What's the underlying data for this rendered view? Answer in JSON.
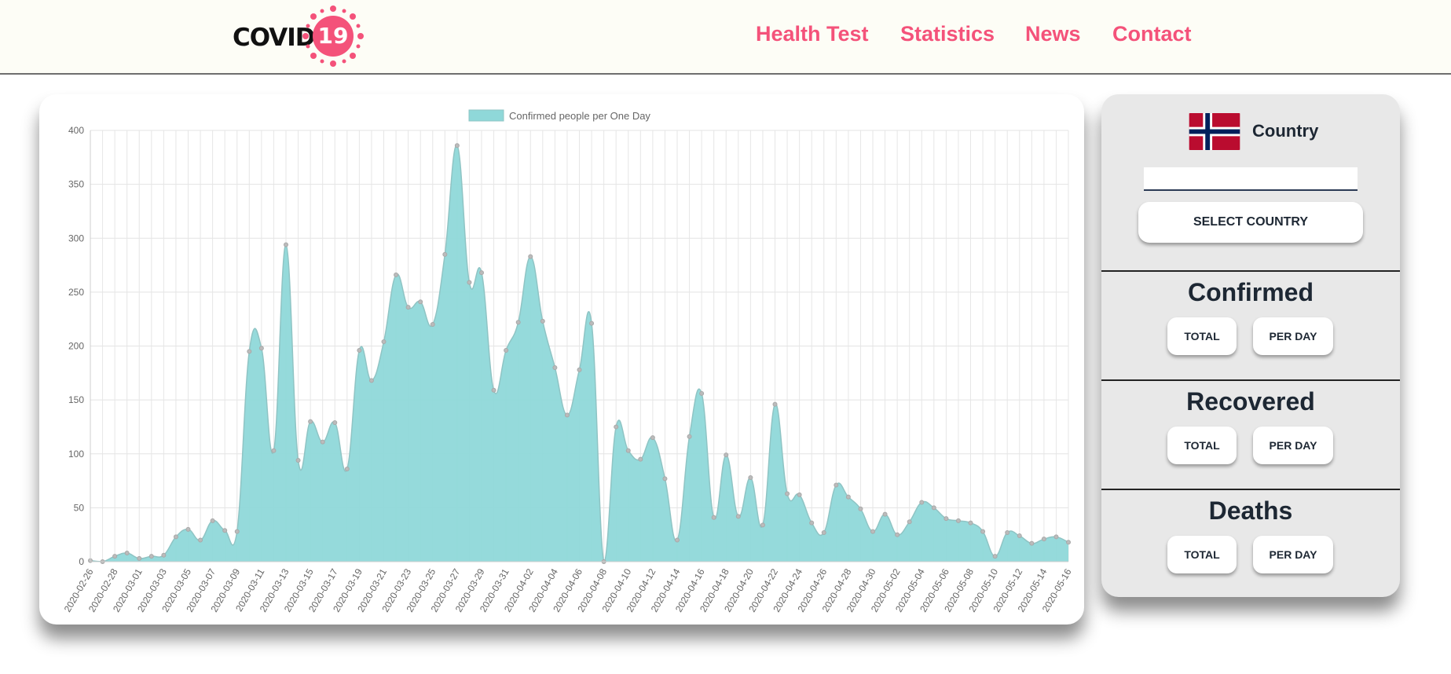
{
  "header": {
    "logo_text": "COVID",
    "logo_number": "19",
    "nav": [
      "Health Test",
      "Statistics",
      "News",
      "Contact"
    ]
  },
  "colors": {
    "accent": "#f4527a",
    "chart_fill": "#8fd8d9",
    "chart_line": "#8fc4c4",
    "text_dark": "#1d2733"
  },
  "chart_data": {
    "type": "area",
    "legend": [
      "Confirmed people per One Day"
    ],
    "ylim": [
      0,
      400
    ],
    "yticks": [
      0,
      50,
      100,
      150,
      200,
      250,
      300,
      350,
      400
    ],
    "xtick_labels": [
      "2020-02-26",
      "2020-02-28",
      "2020-03-01",
      "2020-03-03",
      "2020-03-05",
      "2020-03-07",
      "2020-03-09",
      "2020-03-11",
      "2020-03-13",
      "2020-03-15",
      "2020-03-17",
      "2020-03-19",
      "2020-03-21",
      "2020-03-23",
      "2020-03-25",
      "2020-03-27",
      "2020-03-29",
      "2020-03-31",
      "2020-04-02",
      "2020-04-04",
      "2020-04-06",
      "2020-04-08",
      "2020-04-10",
      "2020-04-12",
      "2020-04-14",
      "2020-04-16",
      "2020-04-18",
      "2020-04-20",
      "2020-04-22",
      "2020-04-24",
      "2020-04-26",
      "2020-04-28",
      "2020-04-30",
      "2020-05-02",
      "2020-05-04",
      "2020-05-06",
      "2020-05-08",
      "2020-05-10",
      "2020-05-12",
      "2020-05-14",
      "2020-05-16"
    ],
    "series": [
      {
        "name": "Confirmed people per One Day",
        "values": [
          1,
          0,
          5,
          8,
          3,
          5,
          6,
          23,
          30,
          20,
          38,
          29,
          28,
          195,
          198,
          103,
          294,
          94,
          130,
          111,
          129,
          86,
          196,
          168,
          204,
          266,
          236,
          241,
          220,
          285,
          386,
          259,
          268,
          159,
          196,
          222,
          283,
          223,
          180,
          136,
          178,
          221,
          0,
          125,
          103,
          95,
          115,
          77,
          20,
          116,
          156,
          41,
          99,
          42,
          78,
          34,
          146,
          63,
          62,
          36,
          27,
          71,
          60,
          49,
          28,
          44,
          25,
          37,
          55,
          50,
          40,
          38,
          36,
          28,
          5,
          27,
          24,
          17,
          21,
          23,
          18
        ]
      }
    ],
    "grid": true,
    "legend_position": "top"
  },
  "side": {
    "country_label": "Country",
    "country_input_value": "",
    "select_button": "SELECT COUNTRY",
    "sections": [
      {
        "title": "Confirmed",
        "total": "TOTAL",
        "per_day": "PER DAY"
      },
      {
        "title": "Recovered",
        "total": "TOTAL",
        "per_day": "PER DAY"
      },
      {
        "title": "Deaths",
        "total": "TOTAL",
        "per_day": "PER DAY"
      }
    ]
  }
}
